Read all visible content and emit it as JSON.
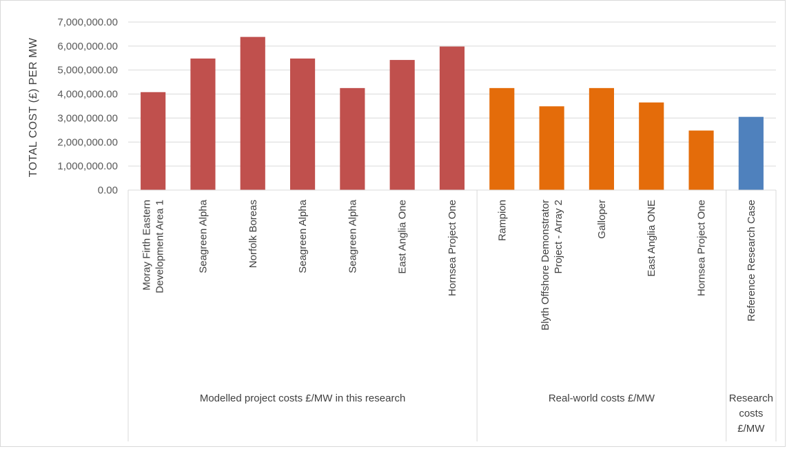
{
  "chart_data": {
    "type": "bar",
    "title": "",
    "xlabel": "",
    "ylabel": "TOTAL COST (£) PER MW",
    "ylim": [
      0,
      7000000
    ],
    "yticks": [
      "0.00",
      "1,000,000.00",
      "2,000,000.00",
      "3,000,000.00",
      "4,000,000.00",
      "5,000,000.00",
      "6,000,000.00",
      "7,000,000.00"
    ],
    "grid": true,
    "legend": "none",
    "categories": [
      "Moray Firth Eastern Development Area 1",
      "Seagreen Alpha",
      "Norfolk Boreas",
      "Seagreen Alpha",
      "Seagreen Alpha",
      "East Anglia One",
      "Hornsea Project One",
      "Rampion",
      "Blyth Offshore Demonstrator Project - Array 2",
      "Galloper",
      "East Anglia ONE",
      "Hornsea Project One",
      "Reference Research Case"
    ],
    "category_lines": [
      [
        "Moray Firth Eastern",
        "Development Area 1"
      ],
      [
        "Seagreen Alpha"
      ],
      [
        "Norfolk Boreas"
      ],
      [
        "Seagreen Alpha"
      ],
      [
        "Seagreen Alpha"
      ],
      [
        "East Anglia One"
      ],
      [
        "Hornsea Project One"
      ],
      [
        "Rampion"
      ],
      [
        "Blyth Offshore Demonstrator",
        "Project - Array 2"
      ],
      [
        "Galloper"
      ],
      [
        "East Anglia ONE"
      ],
      [
        "Hornsea Project One"
      ],
      [
        "Reference Research Case"
      ]
    ],
    "values": [
      4080000,
      5480000,
      6380000,
      5480000,
      4250000,
      5420000,
      5980000,
      4250000,
      3490000,
      4250000,
      3650000,
      2480000,
      3050000
    ],
    "groups": [
      {
        "lines": [
          "Modelled project costs £/MW in this research"
        ],
        "start": 0,
        "end": 6,
        "color": "#c0504d"
      },
      {
        "lines": [
          "Real-world costs £/MW"
        ],
        "start": 7,
        "end": 11,
        "color": "#e46c0a"
      },
      {
        "lines": [
          "Research",
          "costs",
          "£/MW"
        ],
        "start": 12,
        "end": 12,
        "color": "#4f81bd"
      }
    ]
  }
}
